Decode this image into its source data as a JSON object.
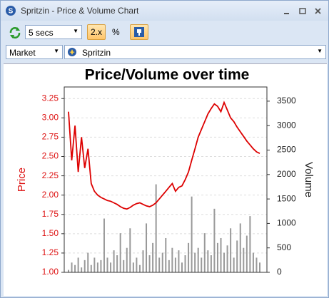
{
  "window": {
    "title": "Spritzin - Price & Volume Chart"
  },
  "toolbar": {
    "interval": "5 secs",
    "scale_button": "2.x",
    "percent_button": "%"
  },
  "selector": {
    "market": "Market",
    "instrument": "Spritzin"
  },
  "chart_data": {
    "type": "line",
    "title": "Price/Volume over time",
    "ylabel": "Price",
    "y2label": "Volume",
    "ylabel_color": "#dd1111",
    "ylim": [
      1.0,
      3.4
    ],
    "yticks": [
      {
        "value": 1.0,
        "label": "1.00"
      },
      1.25,
      {
        "value": 1.5,
        "label": "1.50"
      },
      1.75,
      {
        "value": 2.0,
        "label": "2.00"
      },
      2.25,
      {
        "value": 2.5,
        "label": "2.50"
      },
      2.75,
      {
        "value": 3.0,
        "label": "3.00"
      },
      3.25
    ],
    "y2lim": [
      0,
      3790
    ],
    "y2ticks": [
      0,
      500,
      1000,
      1500,
      2000,
      2500,
      3000,
      3500
    ],
    "grid": true,
    "series": [
      {
        "color": "#dd0000",
        "values": [
          3.08,
          2.45,
          2.9,
          2.3,
          2.75,
          2.35,
          2.6,
          2.15,
          2.05,
          2.0,
          1.97,
          1.95,
          1.93,
          1.92,
          1.9,
          1.88,
          1.85,
          1.83,
          1.82,
          1.84,
          1.87,
          1.89,
          1.9,
          1.88,
          1.86,
          1.85,
          1.87,
          1.9,
          1.95,
          2.0,
          2.05,
          2.1,
          2.15,
          2.05,
          2.1,
          2.12,
          2.2,
          2.3,
          2.45,
          2.6,
          2.75,
          2.85,
          2.95,
          3.05,
          3.12,
          3.18,
          3.15,
          3.08,
          3.2,
          3.1,
          3.0,
          2.95,
          2.88,
          2.82,
          2.76,
          2.7,
          2.65,
          2.6,
          2.56,
          2.54
        ]
      },
      {
        "color": "#999999",
        "axis": "y2",
        "type": "bar",
        "values": [
          50,
          200,
          150,
          300,
          100,
          250,
          400,
          150,
          300,
          200,
          250,
          1100,
          300,
          200,
          450,
          350,
          800,
          250,
          500,
          900,
          200,
          300,
          150,
          450,
          1000,
          350,
          600,
          1800,
          300,
          400,
          700,
          250,
          500,
          300,
          450,
          200,
          350,
          600,
          1550,
          400,
          500,
          300,
          800,
          450,
          350,
          1300,
          600,
          700,
          400,
          550,
          900,
          300,
          650,
          1000,
          500,
          750,
          1150,
          400,
          300,
          200
        ]
      }
    ]
  }
}
